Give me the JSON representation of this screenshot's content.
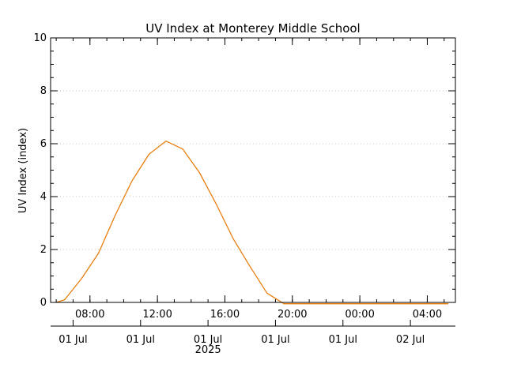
{
  "chart_data": {
    "type": "line",
    "title": "UV Index at Monterey Middle School",
    "ylabel": "UV Index (index)",
    "xlabel": "",
    "ylim": [
      0,
      10
    ],
    "yticks": [
      0,
      2,
      4,
      6,
      8,
      10
    ],
    "y_minor_step": 0.5,
    "xlim": [
      "2025-07-01T05:40",
      "2025-07-02T05:40"
    ],
    "x_major_ticks": [
      {
        "time": "2025-07-01T08:00",
        "label": "08:00"
      },
      {
        "time": "2025-07-01T12:00",
        "label": "12:00"
      },
      {
        "time": "2025-07-01T16:00",
        "label": "16:00"
      },
      {
        "time": "2025-07-01T20:00",
        "label": "20:00"
      },
      {
        "time": "2025-07-02T00:00",
        "label": "00:00"
      },
      {
        "time": "2025-07-02T04:00",
        "label": "04:00"
      }
    ],
    "date_axis": {
      "ticks": [
        {
          "time": "2025-07-01T07:00",
          "label": "01 Jul"
        },
        {
          "time": "2025-07-01T11:00",
          "label": "01 Jul"
        },
        {
          "time": "2025-07-01T15:00",
          "label": "01 Jul"
        },
        {
          "time": "2025-07-01T19:00",
          "label": "01 Jul"
        },
        {
          "time": "2025-07-01T23:00",
          "label": "01 Jul"
        },
        {
          "time": "2025-07-02T03:00",
          "label": "02 Jul"
        }
      ],
      "year_label": "2025",
      "year_time": "2025-07-01T15:00"
    },
    "grid": true,
    "series": [
      {
        "color": "#e87e0e",
        "points": [
          {
            "x": "2025-07-01T06:00",
            "y": 0.0
          },
          {
            "x": "2025-07-01T06:30",
            "y": 0.1
          },
          {
            "x": "2025-07-01T07:30",
            "y": 0.9
          },
          {
            "x": "2025-07-01T08:30",
            "y": 1.85
          },
          {
            "x": "2025-07-01T09:30",
            "y": 3.3
          },
          {
            "x": "2025-07-01T10:30",
            "y": 4.6
          },
          {
            "x": "2025-07-01T11:30",
            "y": 5.6
          },
          {
            "x": "2025-07-01T12:30",
            "y": 6.1
          },
          {
            "x": "2025-07-01T13:30",
            "y": 5.8
          },
          {
            "x": "2025-07-01T14:30",
            "y": 4.9
          },
          {
            "x": "2025-07-01T15:30",
            "y": 3.7
          },
          {
            "x": "2025-07-01T16:30",
            "y": 2.4
          },
          {
            "x": "2025-07-01T17:30",
            "y": 1.35
          },
          {
            "x": "2025-07-01T18:30",
            "y": 0.35
          },
          {
            "x": "2025-07-01T19:30",
            "y": -0.05
          },
          {
            "x": "2025-07-01T20:30",
            "y": -0.05
          },
          {
            "x": "2025-07-01T22:00",
            "y": -0.05
          },
          {
            "x": "2025-07-02T00:00",
            "y": -0.05
          },
          {
            "x": "2025-07-02T02:00",
            "y": -0.05
          },
          {
            "x": "2025-07-02T04:00",
            "y": -0.05
          },
          {
            "x": "2025-07-02T05:15",
            "y": -0.05
          }
        ]
      }
    ]
  }
}
